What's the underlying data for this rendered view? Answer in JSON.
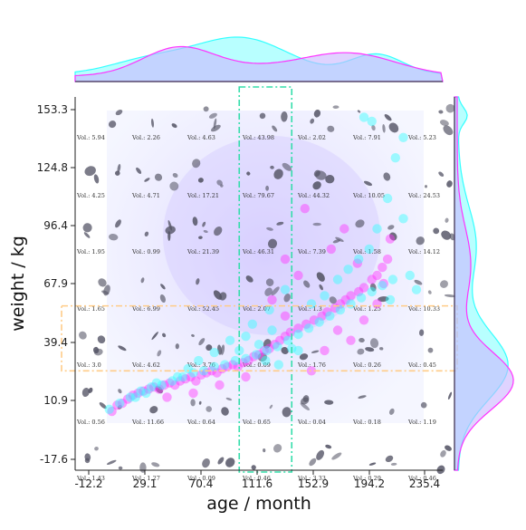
{
  "chart_data": {
    "type": "scatter",
    "xlabel": "age / month",
    "ylabel": "weight / kg",
    "xlim": [
      -30,
      250
    ],
    "ylim": [
      -24,
      160
    ],
    "x_ticks": [
      "-12.2",
      "29.1",
      "70.4",
      "111.6",
      "152.9",
      "194.2",
      "235.4"
    ],
    "y_ticks": [
      "153.3",
      "124.8",
      "96.4",
      "67.9",
      "39.4",
      "10.9",
      "-17.6"
    ],
    "series": [
      {
        "color": "#ff33ff",
        "points": [
          [
            -2,
            5
          ],
          [
            2,
            8
          ],
          [
            6,
            9
          ],
          [
            10,
            11
          ],
          [
            14,
            13
          ],
          [
            18,
            14
          ],
          [
            22,
            15
          ],
          [
            26,
            16
          ],
          [
            30,
            17
          ],
          [
            34,
            16
          ],
          [
            38,
            18
          ],
          [
            42,
            19
          ],
          [
            46,
            18
          ],
          [
            50,
            20
          ],
          [
            54,
            21
          ],
          [
            58,
            22
          ],
          [
            62,
            20
          ],
          [
            66,
            23
          ],
          [
            70,
            24
          ],
          [
            74,
            25
          ],
          [
            78,
            24
          ],
          [
            82,
            26
          ],
          [
            86,
            27
          ],
          [
            90,
            28
          ],
          [
            94,
            27
          ],
          [
            98,
            29
          ],
          [
            102,
            30
          ],
          [
            106,
            32
          ],
          [
            110,
            33
          ],
          [
            114,
            35
          ],
          [
            118,
            36
          ],
          [
            122,
            38
          ],
          [
            126,
            40
          ],
          [
            130,
            42
          ],
          [
            134,
            44
          ],
          [
            140,
            46
          ],
          [
            146,
            48
          ],
          [
            152,
            50
          ],
          [
            158,
            52
          ],
          [
            162,
            54
          ],
          [
            168,
            56
          ],
          [
            172,
            58
          ],
          [
            176,
            60
          ],
          [
            180,
            62
          ],
          [
            186,
            64
          ],
          [
            190,
            66
          ],
          [
            196,
            70
          ],
          [
            200,
            72
          ],
          [
            204,
            76
          ],
          [
            208,
            80
          ],
          [
            150,
            25
          ],
          [
            160,
            35
          ],
          [
            130,
            52
          ],
          [
            140,
            72
          ],
          [
            120,
            60
          ],
          [
            180,
            40
          ],
          [
            190,
            50
          ],
          [
            200,
            58
          ],
          [
            210,
            90
          ],
          [
            175,
            95
          ],
          [
            145,
            105
          ],
          [
            130,
            80
          ],
          [
            165,
            85
          ],
          [
            185,
            78
          ],
          [
            100,
            22
          ],
          [
            60,
            14
          ],
          [
            40,
            12
          ],
          [
            80,
            18
          ],
          [
            170,
            45
          ],
          [
            205,
            68
          ]
        ]
      },
      {
        "color": "#33ffff",
        "points": [
          [
            -4,
            6
          ],
          [
            4,
            9
          ],
          [
            12,
            12
          ],
          [
            20,
            15
          ],
          [
            28,
            17
          ],
          [
            36,
            18
          ],
          [
            44,
            20
          ],
          [
            52,
            22
          ],
          [
            60,
            24
          ],
          [
            68,
            25
          ],
          [
            76,
            27
          ],
          [
            84,
            28
          ],
          [
            92,
            30
          ],
          [
            100,
            31
          ],
          [
            108,
            33
          ],
          [
            116,
            35
          ],
          [
            124,
            37
          ],
          [
            132,
            40
          ],
          [
            140,
            43
          ],
          [
            148,
            46
          ],
          [
            156,
            49
          ],
          [
            164,
            52
          ],
          [
            172,
            55
          ],
          [
            180,
            58
          ],
          [
            188,
            61
          ],
          [
            196,
            64
          ],
          [
            204,
            67
          ],
          [
            212,
            70
          ],
          [
            100,
            42
          ],
          [
            110,
            38
          ],
          [
            120,
            45
          ],
          [
            95,
            35
          ],
          [
            105,
            48
          ],
          [
            115,
            30
          ],
          [
            125,
            28
          ],
          [
            135,
            36
          ],
          [
            150,
            58
          ],
          [
            160,
            62
          ],
          [
            170,
            70
          ],
          [
            178,
            75
          ],
          [
            186,
            80
          ],
          [
            194,
            85
          ],
          [
            200,
            95
          ],
          [
            208,
            110
          ],
          [
            214,
            130
          ],
          [
            220,
            140
          ],
          [
            190,
            150
          ],
          [
            196,
            148
          ],
          [
            230,
            65
          ],
          [
            225,
            72
          ],
          [
            210,
            60
          ],
          [
            140,
            35
          ],
          [
            130,
            65
          ],
          [
            118,
            55
          ],
          [
            88,
            40
          ],
          [
            76,
            34
          ],
          [
            64,
            30
          ],
          [
            56,
            26
          ],
          [
            48,
            22
          ],
          [
            32,
            19
          ],
          [
            24,
            14
          ],
          [
            16,
            12
          ],
          [
            220,
            100
          ]
        ]
      }
    ],
    "vol_rows": [
      [
        "Vol.: 5.94",
        "Vol.: 2.26",
        "Vol.: 4.63",
        "Vol.: 43.98",
        "Vol.: 2.02",
        "Vol.: 7.91",
        "Vol.: 5.23"
      ],
      [
        "Vol.: 4.25",
        "Vol.: 4.71",
        "Vol.: 17.21",
        "Vol.: 79.67",
        "Vol.: 44.32",
        "Vol.: 10.05",
        "Vol.: 24.53"
      ],
      [
        "Vol.: 1.95",
        "Vol.: 0.99",
        "Vol.: 21.39",
        "Vol.: 46.31",
        "Vol.: 7.39",
        "Vol.: 1.58",
        "Vol.: 14.12"
      ],
      [
        "Vol.: 1.65",
        "Vol.: 6.99",
        "Vol.: 52.45",
        "Vol.: 2.07",
        "Vol.: 1.3",
        "Vol.: 1.25",
        "Vol.: 10.33"
      ],
      [
        "Vol.: 3.0",
        "Vol.: 4.62",
        "Vol.: 3.76",
        "Vol.: 0.09",
        "Vol.: 1.76",
        "Vol.: 0.26",
        "Vol.: 0.45"
      ],
      [
        "Vol.: 0.56",
        "Vol.: 11.66",
        "Vol.: 0.64",
        "Vol.: 0.65",
        "Vol.: 0.04",
        "Vol.: 0.18",
        "Vol.: 1.19"
      ],
      [
        "Vol.: 1.43",
        "Vol.: 1.27",
        "Vol.: 0.09",
        "Vol.: 0.46",
        "Vol.: 3.33",
        "Vol.: 0.29",
        "Vol.: 0.46"
      ]
    ],
    "highlight_x_band": [
      95,
      135
    ],
    "highlight_y_band": [
      25,
      57
    ],
    "colors": {
      "magenta": "#ff33ff",
      "cyan": "#33ffff",
      "lavender": "#c9b6ff",
      "band_x": "#33ddaa",
      "band_y": "#ffcc88",
      "ink": "#555566"
    }
  }
}
